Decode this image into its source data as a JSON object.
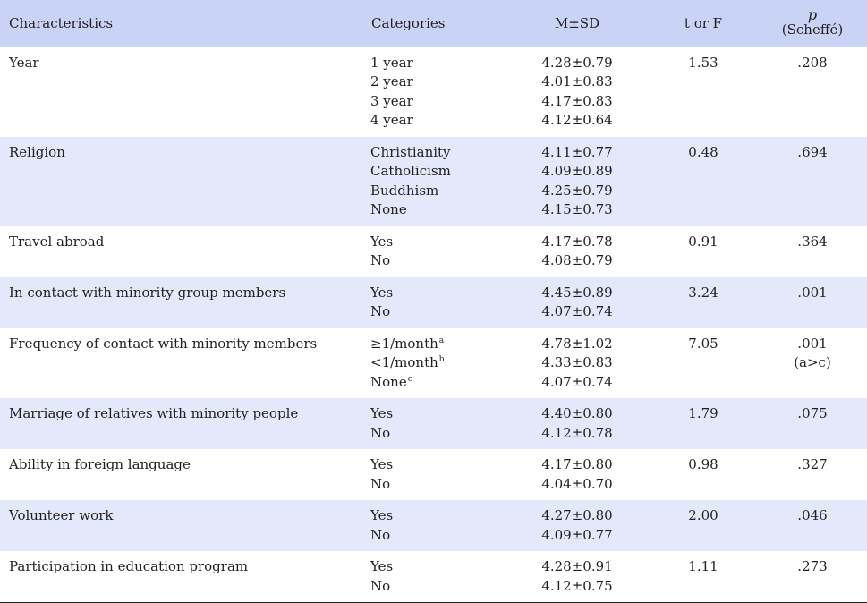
{
  "header": {
    "characteristics": "Characteristics",
    "categories": "Categories",
    "msd": "M±SD",
    "tf": "t or F",
    "p": "p",
    "p_sub": "(Scheffé)"
  },
  "rows": [
    {
      "label": "Year",
      "cats": [
        "1 year",
        "2 year",
        "3 year",
        "4 year"
      ],
      "sups": [
        "",
        "",
        "",
        ""
      ],
      "vals": [
        "4.28±0.79",
        "4.01±0.83",
        "4.17±0.83",
        "4.12±0.64"
      ],
      "tf": "1.53",
      "p": ".208",
      "p_note": ""
    },
    {
      "label": "Religion",
      "cats": [
        "Christianity",
        "Catholicism",
        "Buddhism",
        "None"
      ],
      "sups": [
        "",
        "",
        "",
        ""
      ],
      "vals": [
        "4.11±0.77",
        "4.09±0.89",
        "4.25±0.79",
        "4.15±0.73"
      ],
      "tf": "0.48",
      "p": ".694",
      "p_note": ""
    },
    {
      "label": "Travel abroad",
      "cats": [
        "Yes",
        "No"
      ],
      "sups": [
        "",
        ""
      ],
      "vals": [
        "4.17±0.78",
        "4.08±0.79"
      ],
      "tf": "0.91",
      "p": ".364",
      "p_note": ""
    },
    {
      "label": "In contact with minority group members",
      "cats": [
        "Yes",
        "No"
      ],
      "sups": [
        "",
        ""
      ],
      "vals": [
        "4.45±0.89",
        "4.07±0.74"
      ],
      "tf": "3.24",
      "p": ".001",
      "p_note": ""
    },
    {
      "label": "Frequency of contact with minority members",
      "cats": [
        "≥1/month",
        "<1/month",
        "None"
      ],
      "sups": [
        "a",
        "b",
        "c"
      ],
      "vals": [
        "4.78±1.02",
        "4.33±0.83",
        "4.07±0.74"
      ],
      "tf": "7.05",
      "p": ".001",
      "p_note": "(a>c)"
    },
    {
      "label": "Marriage of relatives with minority people",
      "cats": [
        "Yes",
        "No"
      ],
      "sups": [
        "",
        ""
      ],
      "vals": [
        "4.40±0.80",
        "4.12±0.78"
      ],
      "tf": "1.79",
      "p": ".075",
      "p_note": ""
    },
    {
      "label": "Ability in foreign language",
      "cats": [
        "Yes",
        "No"
      ],
      "sups": [
        "",
        ""
      ],
      "vals": [
        "4.17±0.80",
        "4.04±0.70"
      ],
      "tf": "0.98",
      "p": ".327",
      "p_note": ""
    },
    {
      "label": "Volunteer work",
      "cats": [
        "Yes",
        "No"
      ],
      "sups": [
        "",
        ""
      ],
      "vals": [
        "4.27±0.80",
        "4.09±0.77"
      ],
      "tf": "2.00",
      "p": ".046",
      "p_note": ""
    },
    {
      "label": "Participation in education program",
      "cats": [
        "Yes",
        "No"
      ],
      "sups": [
        "",
        ""
      ],
      "vals": [
        "4.28±0.91",
        "4.12±0.75"
      ],
      "tf": "1.11",
      "p": ".273",
      "p_note": ""
    }
  ]
}
